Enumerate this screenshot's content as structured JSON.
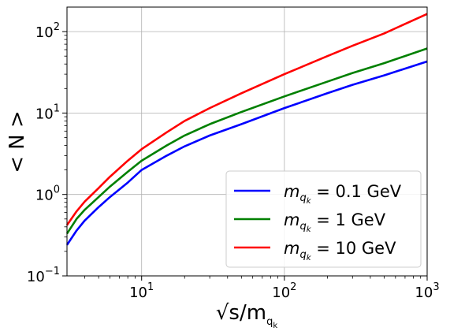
{
  "chart_data": {
    "type": "line",
    "xscale": "log",
    "yscale": "log",
    "xlim": [
      3,
      1000
    ],
    "ylim": [
      0.1,
      200
    ],
    "grid": true,
    "legend_position": "lower-right",
    "xlabel": {
      "prefix": "√s/m",
      "sub": "q",
      "subsub": "k"
    },
    "ylabel": "< N >",
    "xticks": [
      {
        "value": 10,
        "base": "10",
        "exp": "1"
      },
      {
        "value": 100,
        "base": "10",
        "exp": "2"
      },
      {
        "value": 1000,
        "base": "10",
        "exp": "3"
      }
    ],
    "yticks": [
      {
        "value": 0.1,
        "base": "10",
        "exp": "−1"
      },
      {
        "value": 1,
        "base": "10",
        "exp": "0"
      },
      {
        "value": 10,
        "base": "10",
        "exp": "1"
      },
      {
        "value": 100,
        "base": "10",
        "exp": "2"
      }
    ],
    "series": [
      {
        "name": "m_qk = 0.1 GeV",
        "legend_prefix": "m",
        "legend_sub": "q",
        "legend_subsub": "k",
        "legend_suffix": " = 0.1 GeV",
        "color": "#0000ff",
        "x": [
          3,
          3.5,
          4,
          5,
          6,
          8,
          10,
          15,
          20,
          30,
          50,
          100,
          200,
          300,
          500,
          1000
        ],
        "y": [
          0.24,
          0.36,
          0.48,
          0.7,
          0.93,
          1.4,
          2.0,
          3.0,
          3.9,
          5.3,
          7.3,
          11.5,
          17.5,
          22.2,
          29.0,
          43.0
        ]
      },
      {
        "name": "m_qk = 1 GeV",
        "legend_prefix": "m",
        "legend_sub": "q",
        "legend_subsub": "k",
        "legend_suffix": " = 1 GeV",
        "color": "#008000",
        "x": [
          3,
          3.5,
          4,
          5,
          6,
          8,
          10,
          15,
          20,
          30,
          50,
          100,
          200,
          300,
          500,
          1000
        ],
        "y": [
          0.33,
          0.5,
          0.65,
          0.93,
          1.25,
          1.9,
          2.6,
          4.0,
          5.3,
          7.3,
          10.3,
          16.0,
          24.3,
          31.0,
          41.0,
          62.0
        ]
      },
      {
        "name": "m_qk = 10 GeV",
        "legend_prefix": "m",
        "legend_sub": "q",
        "legend_subsub": "k",
        "legend_suffix": " = 10 GeV",
        "color": "#ff0000",
        "x": [
          3,
          3.5,
          4,
          5,
          6,
          8,
          10,
          15,
          20,
          30,
          50,
          100,
          200,
          300,
          500,
          1000
        ],
        "y": [
          0.42,
          0.62,
          0.82,
          1.2,
          1.65,
          2.6,
          3.6,
          5.8,
          8.0,
          11.5,
          17.5,
          30.0,
          50.0,
          67.0,
          95.0,
          165.0
        ]
      }
    ]
  }
}
